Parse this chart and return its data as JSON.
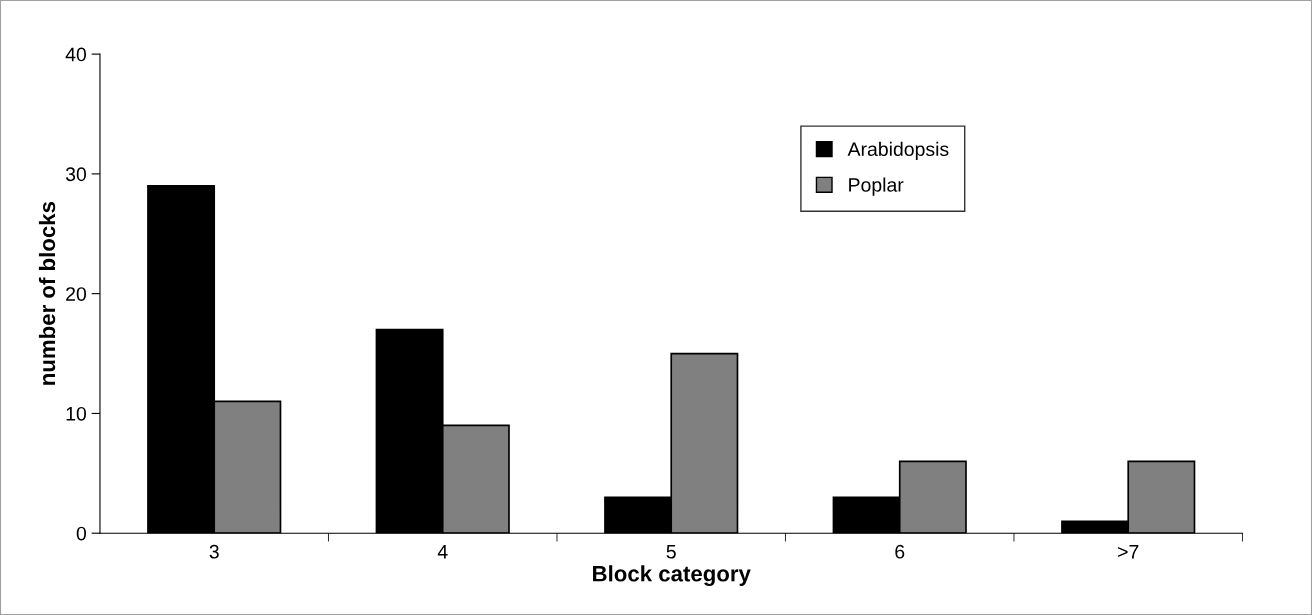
{
  "chart_data": {
    "type": "bar",
    "xlabel": "Block category",
    "ylabel": "number of blocks",
    "categories": [
      "3",
      "4",
      "5",
      "6",
      ">7"
    ],
    "series": [
      {
        "name": "Arabidopsis",
        "color": "#000000",
        "values": [
          29,
          17,
          3,
          3,
          1
        ]
      },
      {
        "name": "Poplar",
        "color": "#808080",
        "values": [
          11,
          9,
          15,
          6,
          6
        ]
      }
    ],
    "ylim": [
      0,
      40
    ],
    "yticks": [
      0,
      10,
      20,
      30,
      40
    ],
    "grid": false,
    "legend": "top right"
  }
}
